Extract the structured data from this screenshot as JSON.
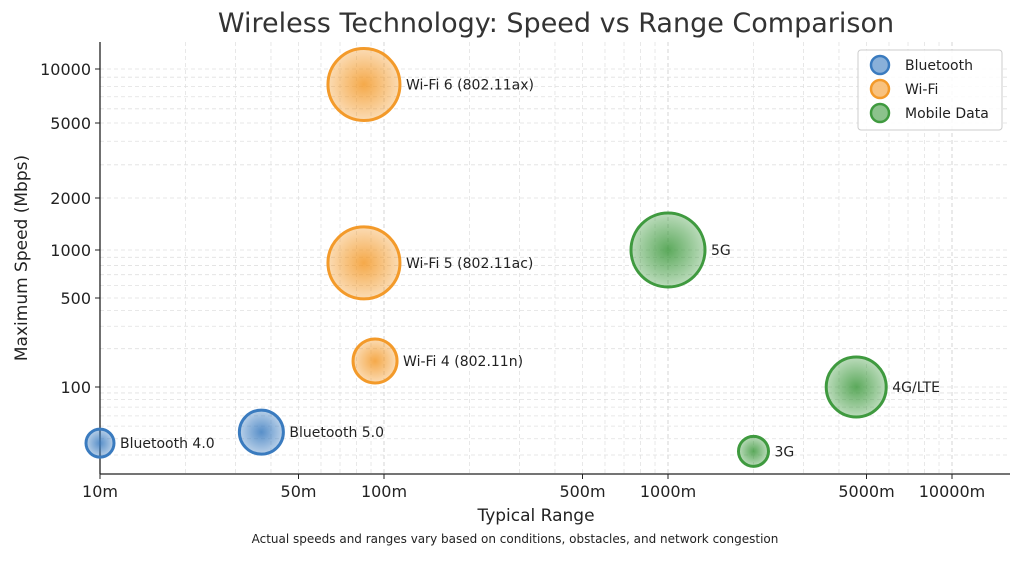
{
  "chart_data": {
    "type": "scatter",
    "title": "Wireless Technology: Speed vs Range Comparison",
    "xlabel": "Typical Range",
    "ylabel": "Maximum Speed (Mbps)",
    "footnote": "Actual speeds and ranges vary based on conditions, obstacles, and network congestion",
    "x_scale": "log",
    "y_scale": "log",
    "xlim": [
      9.8,
      15000
    ],
    "ylim": [
      22,
      15000
    ],
    "x_ticks": [
      {
        "value": 10,
        "label": "10m"
      },
      {
        "value": 50,
        "label": "50m"
      },
      {
        "value": 100,
        "label": "100m"
      },
      {
        "value": 500,
        "label": "500m"
      },
      {
        "value": 1000,
        "label": "1000m"
      },
      {
        "value": 5000,
        "label": "5000m"
      },
      {
        "value": 10000,
        "label": "10000m"
      }
    ],
    "y_ticks": [
      {
        "value": 100,
        "label": "100"
      },
      {
        "value": 500,
        "label": "500"
      },
      {
        "value": 1000,
        "label": "1000"
      },
      {
        "value": 2000,
        "label": "2000"
      },
      {
        "value": 5000,
        "label": "5000"
      },
      {
        "value": 10000,
        "label": "10000"
      }
    ],
    "grid": true,
    "legend_placement": "top-right",
    "series": [
      {
        "name": "Bluetooth",
        "color": "#3a7bbf",
        "points": [
          {
            "label": "Bluetooth 4.0",
            "x": 10,
            "y": 37,
            "size": 14
          },
          {
            "label": "Bluetooth 5.0",
            "x": 37,
            "y": 45,
            "size": 22
          }
        ]
      },
      {
        "name": "Wi-Fi",
        "color": "#f39a2a",
        "points": [
          {
            "label": "Wi-Fi 6 (802.11ax)",
            "x": 85,
            "y": 8200,
            "size": 36
          },
          {
            "label": "Wi-Fi 5 (802.11ac)",
            "x": 85,
            "y": 830,
            "size": 36
          },
          {
            "label": "Wi-Fi 4 (802.11n)",
            "x": 93,
            "y": 160,
            "size": 22
          }
        ]
      },
      {
        "name": "Mobile Data",
        "color": "#3f9a3f",
        "points": [
          {
            "label": "5G",
            "x": 1000,
            "y": 1000,
            "size": 37
          },
          {
            "label": "4G/LTE",
            "x": 4600,
            "y": 100,
            "size": 30
          },
          {
            "label": "3G",
            "x": 2000,
            "y": 32,
            "size": 15
          }
        ]
      }
    ]
  }
}
